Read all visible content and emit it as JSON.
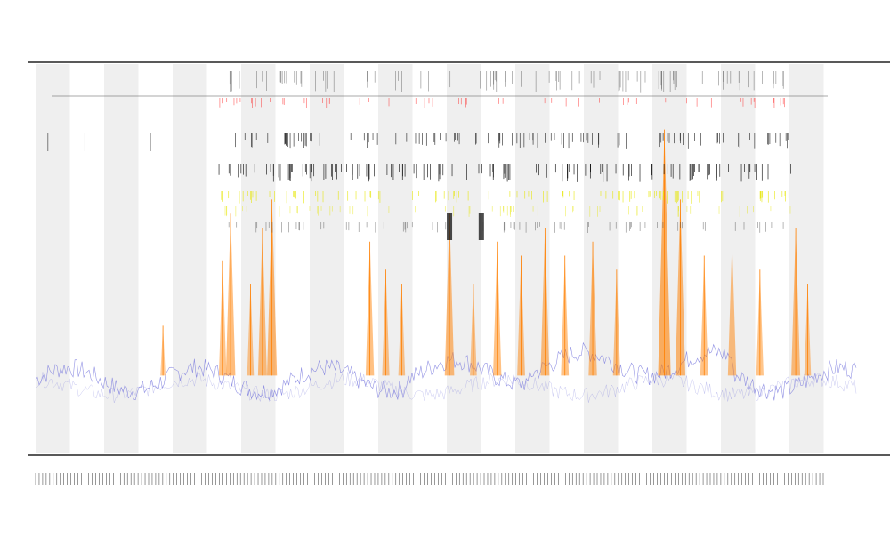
{
  "chart_data": {
    "type": "line",
    "title": "",
    "subtitle_lines": [
      "",
      ""
    ],
    "xlabel": "",
    "ylabel": "",
    "legend": {
      "placement": "top-left",
      "entries": [
        "",
        "",
        "",
        ""
      ]
    },
    "grid": false,
    "band_count": 23,
    "band_colors": {
      "shaded": "#efefef",
      "plain": "#ffffff"
    },
    "series": [
      {
        "name": "",
        "color": "#7777dd",
        "kind": "baseline-line"
      },
      {
        "name": "",
        "color": "#ff7f00",
        "kind": "peak-spikes"
      },
      {
        "name": "",
        "color": "#000000",
        "kind": "event-ticks"
      },
      {
        "name": "",
        "color": "#ff0000",
        "kind": "event-ticks"
      },
      {
        "name": "",
        "color": "#e6e600",
        "kind": "event-ticks"
      }
    ],
    "x_tick_count": 224,
    "peaks": [
      {
        "x": 0.16,
        "y": 0.15
      },
      {
        "x": 0.235,
        "y": 0.38
      },
      {
        "x": 0.245,
        "y": 0.55
      },
      {
        "x": 0.27,
        "y": 0.3
      },
      {
        "x": 0.285,
        "y": 0.5
      },
      {
        "x": 0.297,
        "y": 0.6
      },
      {
        "x": 0.42,
        "y": 0.45
      },
      {
        "x": 0.44,
        "y": 0.35
      },
      {
        "x": 0.46,
        "y": 0.3
      },
      {
        "x": 0.52,
        "y": 0.55
      },
      {
        "x": 0.55,
        "y": 0.3
      },
      {
        "x": 0.58,
        "y": 0.45
      },
      {
        "x": 0.61,
        "y": 0.4
      },
      {
        "x": 0.64,
        "y": 0.5
      },
      {
        "x": 0.665,
        "y": 0.4
      },
      {
        "x": 0.7,
        "y": 0.45
      },
      {
        "x": 0.73,
        "y": 0.35
      },
      {
        "x": 0.79,
        "y": 0.85
      },
      {
        "x": 0.81,
        "y": 0.6
      },
      {
        "x": 0.84,
        "y": 0.4
      },
      {
        "x": 0.875,
        "y": 0.45
      },
      {
        "x": 0.91,
        "y": 0.35
      },
      {
        "x": 0.955,
        "y": 0.5
      },
      {
        "x": 0.97,
        "y": 0.3
      }
    ],
    "dark_peaks": [
      0.52,
      0.56
    ]
  }
}
